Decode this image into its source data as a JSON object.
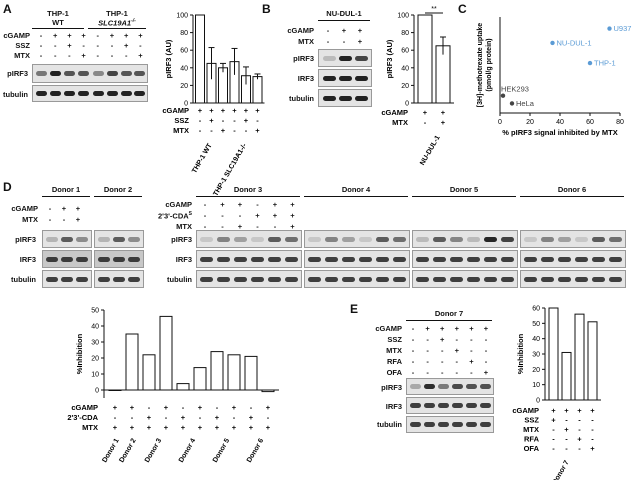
{
  "panels": {
    "A": "A",
    "B": "B",
    "C": "C",
    "D": "D",
    "E": "E"
  },
  "A": {
    "groups": [
      "THP-1",
      "THP-1"
    ],
    "group_sub": [
      "WT",
      "SLC19A1"
    ],
    "group_sup": "-/-",
    "rows": [
      "cGAMP",
      "SSZ",
      "MTX"
    ],
    "row_vals": [
      [
        "-",
        "+",
        "+",
        "+",
        "-",
        "+",
        "+",
        "+"
      ],
      [
        "-",
        "-",
        "+",
        "-",
        "-",
        "-",
        "+",
        "-"
      ],
      [
        "-",
        "-",
        "-",
        "+",
        "-",
        "-",
        "-",
        "+"
      ]
    ],
    "blot_labels": [
      "pIRF3",
      "tubulin"
    ],
    "chart": {
      "type": "bar",
      "ylabel": "pIRF3 (AU)",
      "ylim": [
        0,
        100
      ],
      "yticks": [
        "0",
        "20",
        "40",
        "60",
        "80",
        "100"
      ],
      "values": [
        100,
        45,
        40,
        47,
        31,
        30
      ],
      "errors": [
        0,
        18,
        5,
        15,
        10,
        3
      ],
      "rows": [
        "cGAMP",
        "SSZ",
        "MTX"
      ],
      "row_vals": [
        [
          "+",
          "+",
          "+",
          "+",
          "+",
          "+"
        ],
        [
          "-",
          "+",
          "-",
          "-",
          "+",
          "-"
        ],
        [
          "-",
          "-",
          "+",
          "-",
          "-",
          "+"
        ]
      ],
      "xgroups": [
        "THP-1",
        "THP-1"
      ],
      "xgroup_sub": [
        "WT",
        "SLC19A1"
      ],
      "xgroup_sup": "-/-"
    }
  },
  "B": {
    "title": "NU-DUL-1",
    "rows": [
      "cGAMP",
      "MTX"
    ],
    "row_vals": [
      [
        "-",
        "+",
        "+"
      ],
      [
        "-",
        "-",
        "+"
      ]
    ],
    "blot_labels": [
      "pIRF3",
      "IRF3",
      "tubulin"
    ],
    "chart": {
      "type": "bar",
      "ylabel": "pIRF3 (AU)",
      "ylim": [
        0,
        100
      ],
      "yticks": [
        "0",
        "20",
        "40",
        "60",
        "80",
        "100"
      ],
      "values": [
        100,
        65
      ],
      "errors": [
        0,
        10
      ],
      "sig": "**",
      "rows": [
        "cGAMP",
        "MTX"
      ],
      "row_vals": [
        [
          "+",
          "+"
        ],
        [
          "-",
          "+"
        ]
      ],
      "xlabel": "NU-DUL-1"
    }
  },
  "C": {
    "chart": {
      "type": "scatter",
      "ylabel": "[3H]-methotrexate uptake",
      "ylabel_sup": "3",
      "ylabel_pre": "[",
      "ylabel_post": "H]-methotrexate uptake",
      "ylabel2": "(pmol/g protein)",
      "xlabel": "% pIRF3 signal inhibited by MTX",
      "xticks": [
        "0",
        "20",
        "40",
        "60",
        "80"
      ],
      "xlim": [
        0,
        80
      ],
      "points": [
        {
          "name": "U937",
          "x": 73,
          "y": 0.88,
          "color": "#5b9bd5"
        },
        {
          "name": "NU-DUL-1",
          "x": 35,
          "y": 0.73,
          "color": "#5b9bd5"
        },
        {
          "name": "THP-1",
          "x": 60,
          "y": 0.52,
          "color": "#5b9bd5"
        },
        {
          "name": "HEK293",
          "x": 2,
          "y": 0.18,
          "color": "#444444"
        },
        {
          "name": "HeLa",
          "x": 8,
          "y": 0.1,
          "color": "#444444"
        }
      ]
    }
  },
  "D": {
    "donors_left": [
      "Donor 1",
      "Donor 2"
    ],
    "donors_right": [
      "Donor 3",
      "Donor 4",
      "Donor 5",
      "Donor 6"
    ],
    "rows_left": [
      "cGAMP",
      "MTX"
    ],
    "rows_right": [
      "cGAMP",
      "2'3'-CDAS",
      "MTX"
    ],
    "rows_right_display": [
      "cGAMP",
      "2'3'-CDA",
      "MTX"
    ],
    "cda_sup": "S",
    "left_vals": [
      [
        "-",
        "+",
        "+"
      ],
      [
        "-",
        "-",
        "+"
      ]
    ],
    "right_vals": [
      [
        "-",
        "+",
        "+",
        "-",
        "+",
        "+"
      ],
      [
        "-",
        "-",
        "-",
        "+",
        "+",
        "+"
      ],
      [
        "-",
        "-",
        "+",
        "-",
        "-",
        "+"
      ]
    ],
    "blot_labels": [
      "pIRF3",
      "IRF3",
      "tubulin"
    ],
    "chart": {
      "type": "bar",
      "ylabel": "%Inhibition",
      "ylim": [
        -5,
        50
      ],
      "yticks": [
        "0",
        "10",
        "20",
        "30",
        "40",
        "50"
      ],
      "values": [
        0,
        35,
        22,
        46,
        4,
        14,
        24,
        22,
        21,
        -1
      ],
      "rows": [
        "cGAMP",
        "2'3'-CDA",
        "MTX"
      ],
      "row_vals": [
        [
          "+",
          "+",
          "-",
          "+",
          "-",
          "+",
          "-",
          "+",
          "-",
          "+"
        ],
        [
          "-",
          "-",
          "+",
          "-",
          "+",
          "-",
          "+",
          "-",
          "+",
          "-"
        ],
        [
          "+",
          "+",
          "+",
          "+",
          "+",
          "+",
          "+",
          "+",
          "+",
          "+"
        ]
      ],
      "xgroups": [
        "Donor 1",
        "Donor 2",
        "Donor 3",
        "Donor 4",
        "Donor 5",
        "Donor 6"
      ]
    }
  },
  "E": {
    "title": "Donor 7",
    "rows": [
      "cGAMP",
      "SSZ",
      "MTX",
      "RFA",
      "OFA"
    ],
    "row_vals": [
      [
        "-",
        "+",
        "+",
        "+",
        "+",
        "+"
      ],
      [
        "-",
        "-",
        "+",
        "-",
        "-",
        "-"
      ],
      [
        "-",
        "-",
        "-",
        "+",
        "-",
        "-"
      ],
      [
        "-",
        "-",
        "-",
        "-",
        "+",
        "-"
      ],
      [
        "-",
        "-",
        "-",
        "-",
        "-",
        "+"
      ]
    ],
    "blot_labels": [
      "pIRF3",
      "IRF3",
      "tubulin"
    ],
    "chart": {
      "type": "bar",
      "ylabel": "%Inhibition",
      "ylim": [
        0,
        60
      ],
      "yticks": [
        "0",
        "10",
        "20",
        "30",
        "40",
        "50",
        "60"
      ],
      "values": [
        60,
        31,
        56,
        51
      ],
      "rows": [
        "cGAMP",
        "SSZ",
        "MTX",
        "RFA",
        "OFA"
      ],
      "row_vals": [
        [
          "+",
          "+",
          "+",
          "+"
        ],
        [
          "+",
          "-",
          "-",
          "-"
        ],
        [
          "-",
          "+",
          "-",
          "-"
        ],
        [
          "-",
          "-",
          "+",
          "-"
        ],
        [
          "-",
          "-",
          "-",
          "+"
        ]
      ],
      "xlabel": "Donor 7"
    }
  }
}
